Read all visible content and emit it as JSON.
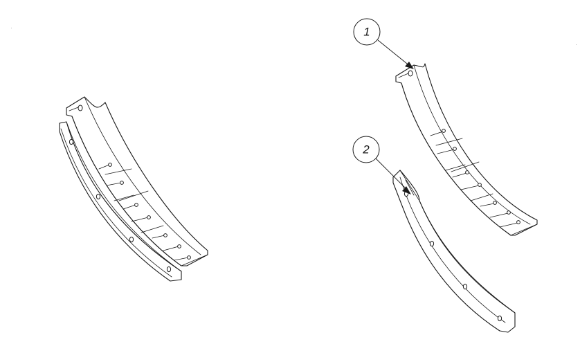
{
  "callouts": [
    {
      "number": "1"
    },
    {
      "number": "2"
    }
  ]
}
